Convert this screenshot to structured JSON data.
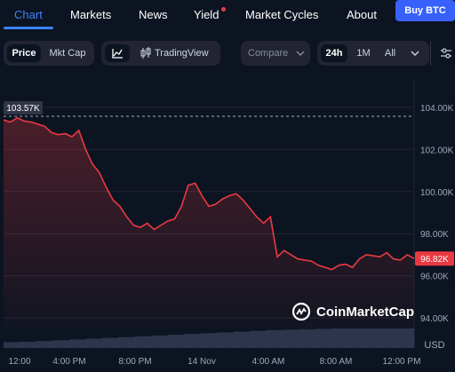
{
  "nav": {
    "tabs": [
      {
        "label": "Chart",
        "active": true
      },
      {
        "label": "Markets"
      },
      {
        "label": "News"
      },
      {
        "label": "Yield",
        "badge_color": "#ea3943"
      },
      {
        "label": "Market Cycles"
      },
      {
        "label": "About"
      }
    ],
    "buy_label": "Buy BTC"
  },
  "controls": {
    "metric_tabs": [
      "Price",
      "Mkt Cap"
    ],
    "metric_selected": "Price",
    "line_icon": "line-chart-icon",
    "tradingview_icon": "candlestick-icon",
    "tradingview_label": "TradingView",
    "compare_label": "Compare",
    "ranges": [
      "24h",
      "1M",
      "All"
    ],
    "range_selected": "24h",
    "settings_icon": "settings-sliders-icon"
  },
  "chart_data": {
    "type": "area",
    "currency": "USD",
    "yticks": [
      "104.00K",
      "102.00K",
      "100.00K",
      "98.00K",
      "96.00K",
      "94.00K"
    ],
    "ylim": [
      93500,
      105300
    ],
    "xticks": [
      "12:00",
      "4:00 PM",
      "8:00 PM",
      "14 Nov",
      "4:00 AM",
      "8:00 AM",
      "12:00 PM"
    ],
    "start_price_label": "103.57K",
    "start_price": 103570,
    "current_price_label": "96.82K",
    "current_price": 96820,
    "line_color": "#ea3943",
    "series": [
      {
        "x": [
          0,
          0.4,
          0.8,
          1.2,
          1.6,
          2,
          2.4,
          2.8,
          3.2,
          3.6,
          4,
          4.4,
          4.8,
          5.2,
          5.6,
          6,
          6.4,
          6.8,
          7.2,
          7.6,
          8,
          8.4,
          8.8,
          9.2,
          9.6,
          10,
          10.4,
          10.8,
          11.2,
          11.6,
          12,
          12.4,
          12.8,
          13.2,
          13.6,
          14,
          14.4,
          14.8,
          15.2,
          15.6,
          16,
          16.4,
          16.8,
          17.2,
          17.6,
          18,
          18.4,
          18.8,
          19.2,
          19.6,
          20,
          20.4,
          20.8,
          21.2,
          21.6,
          22,
          22.4,
          22.8,
          23.2,
          23.6,
          24
        ],
        "y": [
          103400,
          103300,
          103500,
          103350,
          103300,
          103200,
          103100,
          102800,
          102700,
          102750,
          102600,
          102900,
          102000,
          101300,
          100900,
          100200,
          99600,
          99300,
          98800,
          98400,
          98300,
          98500,
          98200,
          98400,
          98600,
          98700,
          99300,
          100300,
          100400,
          99800,
          99300,
          99400,
          99650,
          99800,
          99900,
          99600,
          99200,
          98800,
          98500,
          98800,
          96900,
          97200,
          97000,
          96800,
          96750,
          96700,
          96500,
          96400,
          96300,
          96500,
          96550,
          96400,
          96800,
          97000,
          96950,
          96900,
          97100,
          96800,
          96750,
          97000,
          96820
        ]
      }
    ],
    "volume": [
      0.15,
      0.16,
      0.18,
      0.2,
      0.22,
      0.24,
      0.26,
      0.28,
      0.3,
      0.32,
      0.34,
      0.36,
      0.38,
      0.4,
      0.42,
      0.44,
      0.46,
      0.47,
      0.48,
      0.49,
      0.5,
      0.5,
      0.5,
      0.5,
      0.5
    ]
  },
  "watermark": "CoinMarketCap",
  "watermark_logo": "coinmarketcap-logo-icon"
}
